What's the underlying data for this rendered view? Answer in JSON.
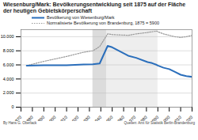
{
  "chart_data": {
    "type": "line",
    "title": "Wiesenburg/Mark: Bevölkerungsentwicklung seit 1875 auf der Fläche der heutigen Gebietskörperschaft",
    "x": [
      1875,
      1890,
      1910,
      1925,
      1933,
      1939,
      1946,
      1950,
      1964,
      1971,
      1981,
      1985,
      1989,
      1990,
      1995,
      2000,
      2005,
      2010,
      2015,
      2020
    ],
    "series": [
      {
        "name": "Bevölkerung von Wiesenburg/Mark",
        "color": "#2a6ebb",
        "line_style": "solid",
        "values": [
          5900,
          5950,
          5950,
          6050,
          6100,
          6200,
          8700,
          8500,
          7300,
          7000,
          6400,
          6250,
          6000,
          5900,
          5600,
          5400,
          5000,
          4600,
          4400,
          4300
        ]
      },
      {
        "name": "Normalisierte Bevölkerung von Brandenburg, 1875 = 5900",
        "color": "#999999",
        "line_style": "dotted",
        "values": [
          5900,
          6500,
          7200,
          7800,
          8000,
          8600,
          10400,
          10300,
          10200,
          10400,
          10600,
          10700,
          10800,
          10700,
          10400,
          10200,
          10000,
          9900,
          10000,
          10200
        ]
      }
    ],
    "periods": [
      [
        1933,
        1945
      ],
      [
        1945,
        1990
      ]
    ],
    "period_colors": [
      "#dcdcdc",
      "#eeeeee"
    ],
    "xlim": [
      1870,
      2020
    ],
    "xticks": [
      1870,
      1880,
      1890,
      1900,
      1910,
      1920,
      1930,
      1940,
      1950,
      1960,
      1970,
      1980,
      1990,
      2000,
      2010,
      2020
    ],
    "ylim": [
      0,
      11000
    ],
    "yticks": [
      0,
      {
        "value": 2000,
        "label": "2.000"
      },
      {
        "value": 4000,
        "label": "4.000"
      },
      {
        "value": 6000,
        "label": "6.000"
      },
      {
        "value": 8000,
        "label": "8.000"
      },
      {
        "value": 10000,
        "label": "10.000"
      }
    ],
    "grid": true,
    "source": "Quellen: Amt für Statistik Berlin-Brandenburg",
    "author": "By Hans G. Oberlack"
  }
}
